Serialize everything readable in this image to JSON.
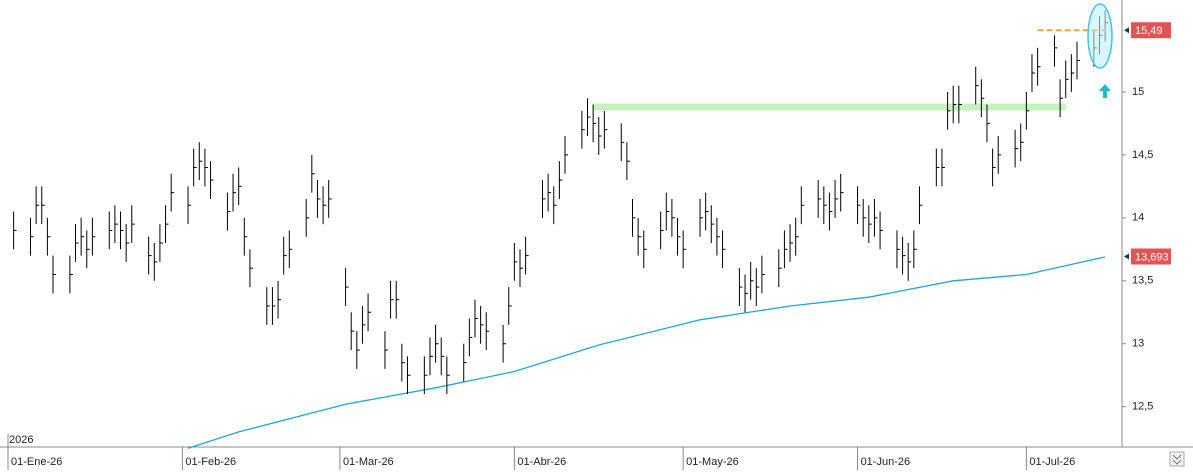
{
  "chart_data": {
    "type": "ohlc",
    "year_label": "2026",
    "xlim": [
      "2026-01-01",
      "2026-07-18"
    ],
    "ylim": [
      12.18,
      15.73
    ],
    "yticks": [
      {
        "value": 12.5,
        "label": "12,5"
      },
      13,
      {
        "value": 13.5,
        "label": "13,5"
      },
      14,
      {
        "value": 14.5,
        "label": "14,5"
      },
      15
    ],
    "xticks": [
      {
        "value": "2026-01-01",
        "label": "01-Ene-26"
      },
      {
        "value": "2026-02-01",
        "label": "01-Feb-26"
      },
      {
        "value": "2026-03-01",
        "label": "01-Mar-26"
      },
      {
        "value": "2026-04-01",
        "label": "01-Abr-26"
      },
      {
        "value": "2026-05-01",
        "label": "01-May-26"
      },
      {
        "value": "2026-06-01",
        "label": "01-Jun-26"
      },
      {
        "value": "2026-07-01",
        "label": "01-Jul-26"
      }
    ],
    "color": "#000000",
    "x": [
      "2026-01-02",
      "2026-01-05",
      "2026-01-06",
      "2026-01-07",
      "2026-01-08",
      "2026-01-09",
      "2026-01-12",
      "2026-01-13",
      "2026-01-14",
      "2026-01-15",
      "2026-01-16",
      "2026-01-19",
      "2026-01-20",
      "2026-01-21",
      "2026-01-22",
      "2026-01-23",
      "2026-01-26",
      "2026-01-27",
      "2026-01-28",
      "2026-01-29",
      "2026-01-30",
      "2026-02-02",
      "2026-02-03",
      "2026-02-04",
      "2026-02-05",
      "2026-02-06",
      "2026-02-09",
      "2026-02-10",
      "2026-02-11",
      "2026-02-12",
      "2026-02-13",
      "2026-02-16",
      "2026-02-17",
      "2026-02-18",
      "2026-02-19",
      "2026-02-20",
      "2026-02-23",
      "2026-02-24",
      "2026-02-25",
      "2026-02-26",
      "2026-02-27",
      "2026-03-02",
      "2026-03-03",
      "2026-03-04",
      "2026-03-05",
      "2026-03-06",
      "2026-03-09",
      "2026-03-10",
      "2026-03-11",
      "2026-03-12",
      "2026-03-13",
      "2026-03-16",
      "2026-03-17",
      "2026-03-18",
      "2026-03-19",
      "2026-03-20",
      "2026-03-23",
      "2026-03-24",
      "2026-03-25",
      "2026-03-26",
      "2026-03-27",
      "2026-03-30",
      "2026-03-31",
      "2026-04-01",
      "2026-04-02",
      "2026-04-03",
      "2026-04-06",
      "2026-04-07",
      "2026-04-08",
      "2026-04-09",
      "2026-04-10",
      "2026-04-13",
      "2026-04-14",
      "2026-04-15",
      "2026-04-16",
      "2026-04-17",
      "2026-04-20",
      "2026-04-21",
      "2026-04-22",
      "2026-04-23",
      "2026-04-24",
      "2026-04-27",
      "2026-04-28",
      "2026-04-29",
      "2026-04-30",
      "2026-05-01",
      "2026-05-04",
      "2026-05-05",
      "2026-05-06",
      "2026-05-07",
      "2026-05-08",
      "2026-05-11",
      "2026-05-12",
      "2026-05-13",
      "2026-05-14",
      "2026-05-15",
      "2026-05-18",
      "2026-05-19",
      "2026-05-20",
      "2026-05-21",
      "2026-05-22",
      "2026-05-25",
      "2026-05-26",
      "2026-05-27",
      "2026-05-28",
      "2026-05-29",
      "2026-06-01",
      "2026-06-02",
      "2026-06-03",
      "2026-06-04",
      "2026-06-05",
      "2026-06-08",
      "2026-06-09",
      "2026-06-10",
      "2026-06-11",
      "2026-06-12",
      "2026-06-15",
      "2026-06-16",
      "2026-06-17",
      "2026-06-18",
      "2026-06-19",
      "2026-06-22",
      "2026-06-23",
      "2026-06-24",
      "2026-06-25",
      "2026-06-26",
      "2026-06-29",
      "2026-06-30",
      "2026-07-01",
      "2026-07-02",
      "2026-07-03",
      "2026-07-06",
      "2026-07-07",
      "2026-07-08",
      "2026-07-09",
      "2026-07-10",
      "2026-07-13",
      "2026-07-14",
      "2026-07-15"
    ],
    "high": [
      14.05,
      14.0,
      14.25,
      14.25,
      14.0,
      13.7,
      13.7,
      13.95,
      14.0,
      13.9,
      14.0,
      14.05,
      14.1,
      14.05,
      13.95,
      14.1,
      13.85,
      13.8,
      13.95,
      14.1,
      14.35,
      14.25,
      14.55,
      14.6,
      14.55,
      14.45,
      14.2,
      14.35,
      14.4,
      14.0,
      13.75,
      13.45,
      13.45,
      13.5,
      13.85,
      13.9,
      14.15,
      14.5,
      14.3,
      14.25,
      14.3,
      13.6,
      13.25,
      13.1,
      13.3,
      13.4,
      13.1,
      13.5,
      13.5,
      13.0,
      12.9,
      12.9,
      13.05,
      13.15,
      13.05,
      12.9,
      13.0,
      13.2,
      13.35,
      13.3,
      13.25,
      13.15,
      13.45,
      13.8,
      13.75,
      13.85,
      14.3,
      14.35,
      14.25,
      14.45,
      14.65,
      14.85,
      14.95,
      14.9,
      14.8,
      14.85,
      14.75,
      14.6,
      14.15,
      14.0,
      13.9,
      14.05,
      14.2,
      14.15,
      14.0,
      13.9,
      14.15,
      14.2,
      14.1,
      14.0,
      13.9,
      13.6,
      13.55,
      13.65,
      13.6,
      13.7,
      13.75,
      13.9,
      13.95,
      14.0,
      14.25,
      14.3,
      14.25,
      14.2,
      14.3,
      14.35,
      14.25,
      14.15,
      14.1,
      14.15,
      14.05,
      13.9,
      13.85,
      13.8,
      13.9,
      14.25,
      14.55,
      14.55,
      15.0,
      15.05,
      15.05,
      15.2,
      15.1,
      14.9,
      14.55,
      14.65,
      14.7,
      14.75,
      15.0,
      15.3,
      15.35,
      15.45,
      15.1,
      15.25,
      15.3,
      15.4,
      15.5,
      15.6,
      15.65
    ],
    "low": [
      13.75,
      13.7,
      13.95,
      13.95,
      13.7,
      13.4,
      13.4,
      13.65,
      13.7,
      13.6,
      13.7,
      13.75,
      13.8,
      13.75,
      13.65,
      13.8,
      13.55,
      13.5,
      13.65,
      13.8,
      14.05,
      13.95,
      14.25,
      14.3,
      14.25,
      14.15,
      13.9,
      14.05,
      14.1,
      13.7,
      13.45,
      13.15,
      13.15,
      13.2,
      13.55,
      13.6,
      13.85,
      14.2,
      14.0,
      13.95,
      14.0,
      13.3,
      12.95,
      12.8,
      13.0,
      13.1,
      12.8,
      13.2,
      13.2,
      12.7,
      12.6,
      12.6,
      12.75,
      12.85,
      12.75,
      12.6,
      12.7,
      12.9,
      13.05,
      13.0,
      12.95,
      12.85,
      13.15,
      13.5,
      13.45,
      13.55,
      14.0,
      14.05,
      13.95,
      14.15,
      14.35,
      14.55,
      14.65,
      14.6,
      14.5,
      14.55,
      14.45,
      14.3,
      13.85,
      13.7,
      13.6,
      13.75,
      13.9,
      13.85,
      13.7,
      13.6,
      13.85,
      13.9,
      13.8,
      13.7,
      13.6,
      13.3,
      13.25,
      13.35,
      13.3,
      13.4,
      13.45,
      13.6,
      13.65,
      13.7,
      13.95,
      14.0,
      13.95,
      13.9,
      14.0,
      14.05,
      13.95,
      13.85,
      13.8,
      13.85,
      13.75,
      13.6,
      13.55,
      13.5,
      13.6,
      13.95,
      14.25,
      14.25,
      14.7,
      14.75,
      14.75,
      14.9,
      14.8,
      14.6,
      14.25,
      14.35,
      14.4,
      14.45,
      14.7,
      15.0,
      15.05,
      15.2,
      14.8,
      14.95,
      15.0,
      15.1,
      15.2,
      15.3,
      15.4
    ],
    "close": [
      13.9,
      13.85,
      14.1,
      14.1,
      13.85,
      13.55,
      13.55,
      13.8,
      13.85,
      13.75,
      13.85,
      13.9,
      13.95,
      13.9,
      13.8,
      13.95,
      13.7,
      13.65,
      13.8,
      13.95,
      14.2,
      14.1,
      14.4,
      14.45,
      14.4,
      14.3,
      14.05,
      14.2,
      14.25,
      13.85,
      13.6,
      13.3,
      13.3,
      13.35,
      13.7,
      13.75,
      14.0,
      14.35,
      14.15,
      14.1,
      14.15,
      13.45,
      13.1,
      12.95,
      13.15,
      13.25,
      12.95,
      13.35,
      13.35,
      12.85,
      12.75,
      12.75,
      12.9,
      13.0,
      12.9,
      12.75,
      12.85,
      13.05,
      13.2,
      13.15,
      13.1,
      13.0,
      13.3,
      13.65,
      13.6,
      13.7,
      14.15,
      14.2,
      14.1,
      14.3,
      14.5,
      14.7,
      14.8,
      14.75,
      14.65,
      14.7,
      14.6,
      14.45,
      14.0,
      13.85,
      13.75,
      13.9,
      14.05,
      14.0,
      13.85,
      13.75,
      14.0,
      14.05,
      13.95,
      13.85,
      13.75,
      13.45,
      13.4,
      13.5,
      13.45,
      13.55,
      13.6,
      13.75,
      13.8,
      13.85,
      14.1,
      14.15,
      14.1,
      14.05,
      14.15,
      14.2,
      14.1,
      14.0,
      13.95,
      14.0,
      13.9,
      13.75,
      13.7,
      13.65,
      13.75,
      14.1,
      14.4,
      14.4,
      14.85,
      14.9,
      14.9,
      15.05,
      14.95,
      14.75,
      14.4,
      14.5,
      14.55,
      14.6,
      14.85,
      15.15,
      15.2,
      15.35,
      14.95,
      15.1,
      15.15,
      15.25,
      15.35,
      15.45,
      15.55
    ],
    "moving_average": {
      "color": "#1ea7d6",
      "x": [
        "2026-02-02",
        "2026-02-11",
        "2026-03-02",
        "2026-03-18",
        "2026-04-01",
        "2026-04-16",
        "2026-05-04",
        "2026-05-20",
        "2026-06-03",
        "2026-06-18",
        "2026-07-01",
        "2026-07-15"
      ],
      "values": [
        12.17,
        12.3,
        12.52,
        12.65,
        12.78,
        12.99,
        13.19,
        13.3,
        13.37,
        13.5,
        13.55,
        13.69
      ]
    },
    "support_line": {
      "value": 14.88,
      "from": "2026-04-15",
      "to": "2026-07-08",
      "color": "#c6f2bf"
    },
    "target_line": {
      "value": 15.49,
      "from": "2026-07-03",
      "to": "2026-07-16",
      "color": "#f3a531"
    },
    "price_labels": [
      {
        "value": 15.49,
        "label": "15,49"
      },
      {
        "value": 13.693,
        "label": "13,693"
      }
    ],
    "price_label_color": "#e05454"
  }
}
